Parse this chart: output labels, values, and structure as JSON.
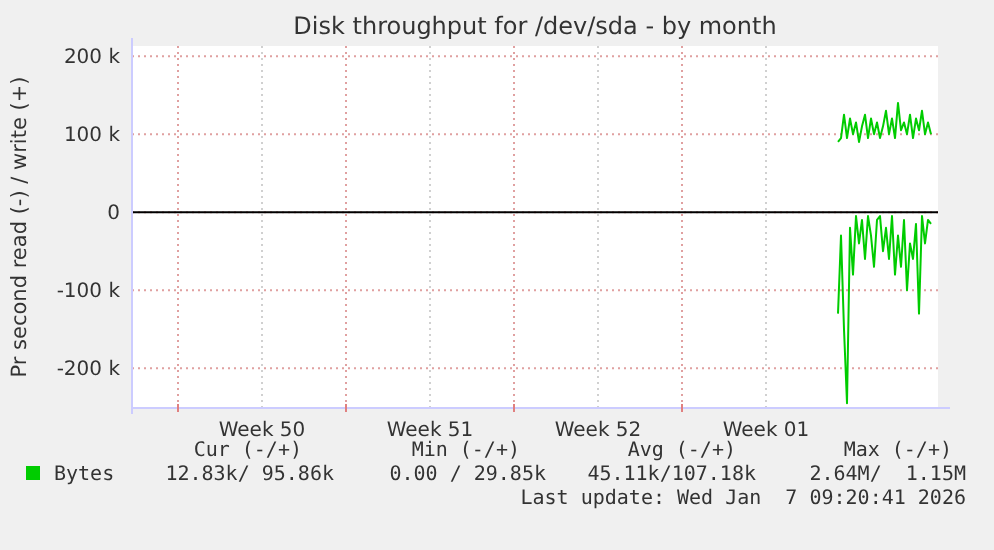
{
  "chart_data": {
    "type": "line",
    "title": "Disk throughput for /dev/sda - by month",
    "ylabel": "Pr second read (-) / write (+)",
    "xlim": [
      "2025-12-06T02:00",
      "2026-01-08T16:00"
    ],
    "xticks": [
      {
        "value": "2025-12-08T00:00",
        "label": null
      },
      {
        "value": "2025-12-11T12:00",
        "label": "Week 50"
      },
      {
        "value": "2025-12-15T00:00",
        "label": null
      },
      {
        "value": "2025-12-18T12:00",
        "label": "Week 51"
      },
      {
        "value": "2025-12-22T00:00",
        "label": null
      },
      {
        "value": "2025-12-25T12:00",
        "label": "Week 52"
      },
      {
        "value": "2025-12-29T00:00",
        "label": null
      },
      {
        "value": "2026-01-01T12:00",
        "label": "Week 01"
      }
    ],
    "ylim": [
      -251000,
      213000
    ],
    "yticks": [
      {
        "value": -200000,
        "label": "-200 k"
      },
      {
        "value": -100000,
        "label": "-100 k"
      },
      0,
      {
        "value": 100000,
        "label": "100 k"
      },
      {
        "value": 200000,
        "label": "200 k"
      }
    ],
    "grid": true,
    "legend": "bottom left",
    "ref_lines": [
      {
        "axis": "y",
        "value": 0,
        "color": "#000000"
      }
    ],
    "x": [
      "2026-01-04T12:00",
      "2026-01-04T15:00",
      "2026-01-04T18:00",
      "2026-01-04T21:00",
      "2026-01-05T00:00",
      "2026-01-05T03:00",
      "2026-01-05T06:00",
      "2026-01-05T09:00",
      "2026-01-05T12:00",
      "2026-01-05T15:00",
      "2026-01-05T18:00",
      "2026-01-05T21:00",
      "2026-01-06T00:00",
      "2026-01-06T03:00",
      "2026-01-06T06:00",
      "2026-01-06T09:00",
      "2026-01-06T12:00",
      "2026-01-06T15:00",
      "2026-01-06T18:00",
      "2026-01-06T21:00",
      "2026-01-07T00:00",
      "2026-01-07T03:00",
      "2026-01-07T06:00",
      "2026-01-07T09:00",
      "2026-01-07T12:00",
      "2026-01-07T15:00",
      "2026-01-07T18:00",
      "2026-01-07T21:00",
      "2026-01-08T00:00",
      "2026-01-08T03:00",
      "2026-01-08T06:00",
      "2026-01-08T09:00"
    ],
    "series": [
      {
        "name": "Bytes",
        "color": "#00cc00",
        "values": [
          90000,
          95000,
          125000,
          95000,
          120000,
          100000,
          115000,
          90000,
          110000,
          125000,
          95000,
          120000,
          100000,
          115000,
          95000,
          110000,
          130000,
          100000,
          120000,
          95000,
          140000,
          105000,
          115000,
          100000,
          125000,
          95000,
          120000,
          105000,
          130000,
          100000,
          115000,
          100000
        ]
      },
      {
        "color": "#00cc00",
        "values": [
          -130000,
          -30000,
          -150000,
          -245000,
          -20000,
          -80000,
          -5000,
          -40000,
          -10000,
          -60000,
          -5000,
          -30000,
          -70000,
          -10000,
          -5000,
          -50000,
          -20000,
          -60000,
          -5000,
          -80000,
          -30000,
          -70000,
          -10000,
          -100000,
          -40000,
          -60000,
          -15000,
          -130000,
          -5000,
          -40000,
          -10000,
          -15000
        ]
      }
    ],
    "annotations": [
      "Cur (-/+)",
      "Min (-/+)",
      "Avg (-/+)",
      "Max (-/+)",
      "12.83k/ 95.86k",
      "0.00 / 29.85k",
      "45.11k/107.18k",
      "2.64M/  1.15M",
      "Last update: Wed Jan  7 09:20:41 2026"
    ]
  }
}
